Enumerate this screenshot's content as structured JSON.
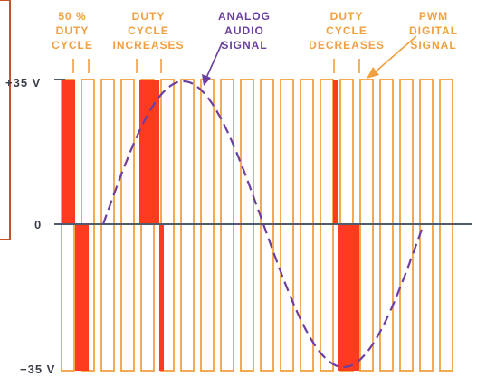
{
  "labels": {
    "fifty_percent": [
      "50 %",
      "DUTY",
      "CYCLE"
    ],
    "duty_increases": [
      "DUTY",
      "CYCLE",
      "INCREASES"
    ],
    "analog_signal": [
      "ANALOG",
      "AUDIO",
      "SIGNAL"
    ],
    "duty_decreases": [
      "DUTY",
      "CYCLE",
      "DECREASES"
    ],
    "pwm_signal": [
      "PWM",
      "DIGITAL",
      "SIGNAL"
    ]
  },
  "axis": {
    "plus": "+35 V",
    "zero": "0",
    "minus": "−35 V"
  },
  "colors": {
    "orange": "#f0a040",
    "pulse_fill": "#ff3b1f",
    "analog": "#6a3fa0",
    "axis": "#505a6a",
    "frame": "#c8522a"
  }
}
